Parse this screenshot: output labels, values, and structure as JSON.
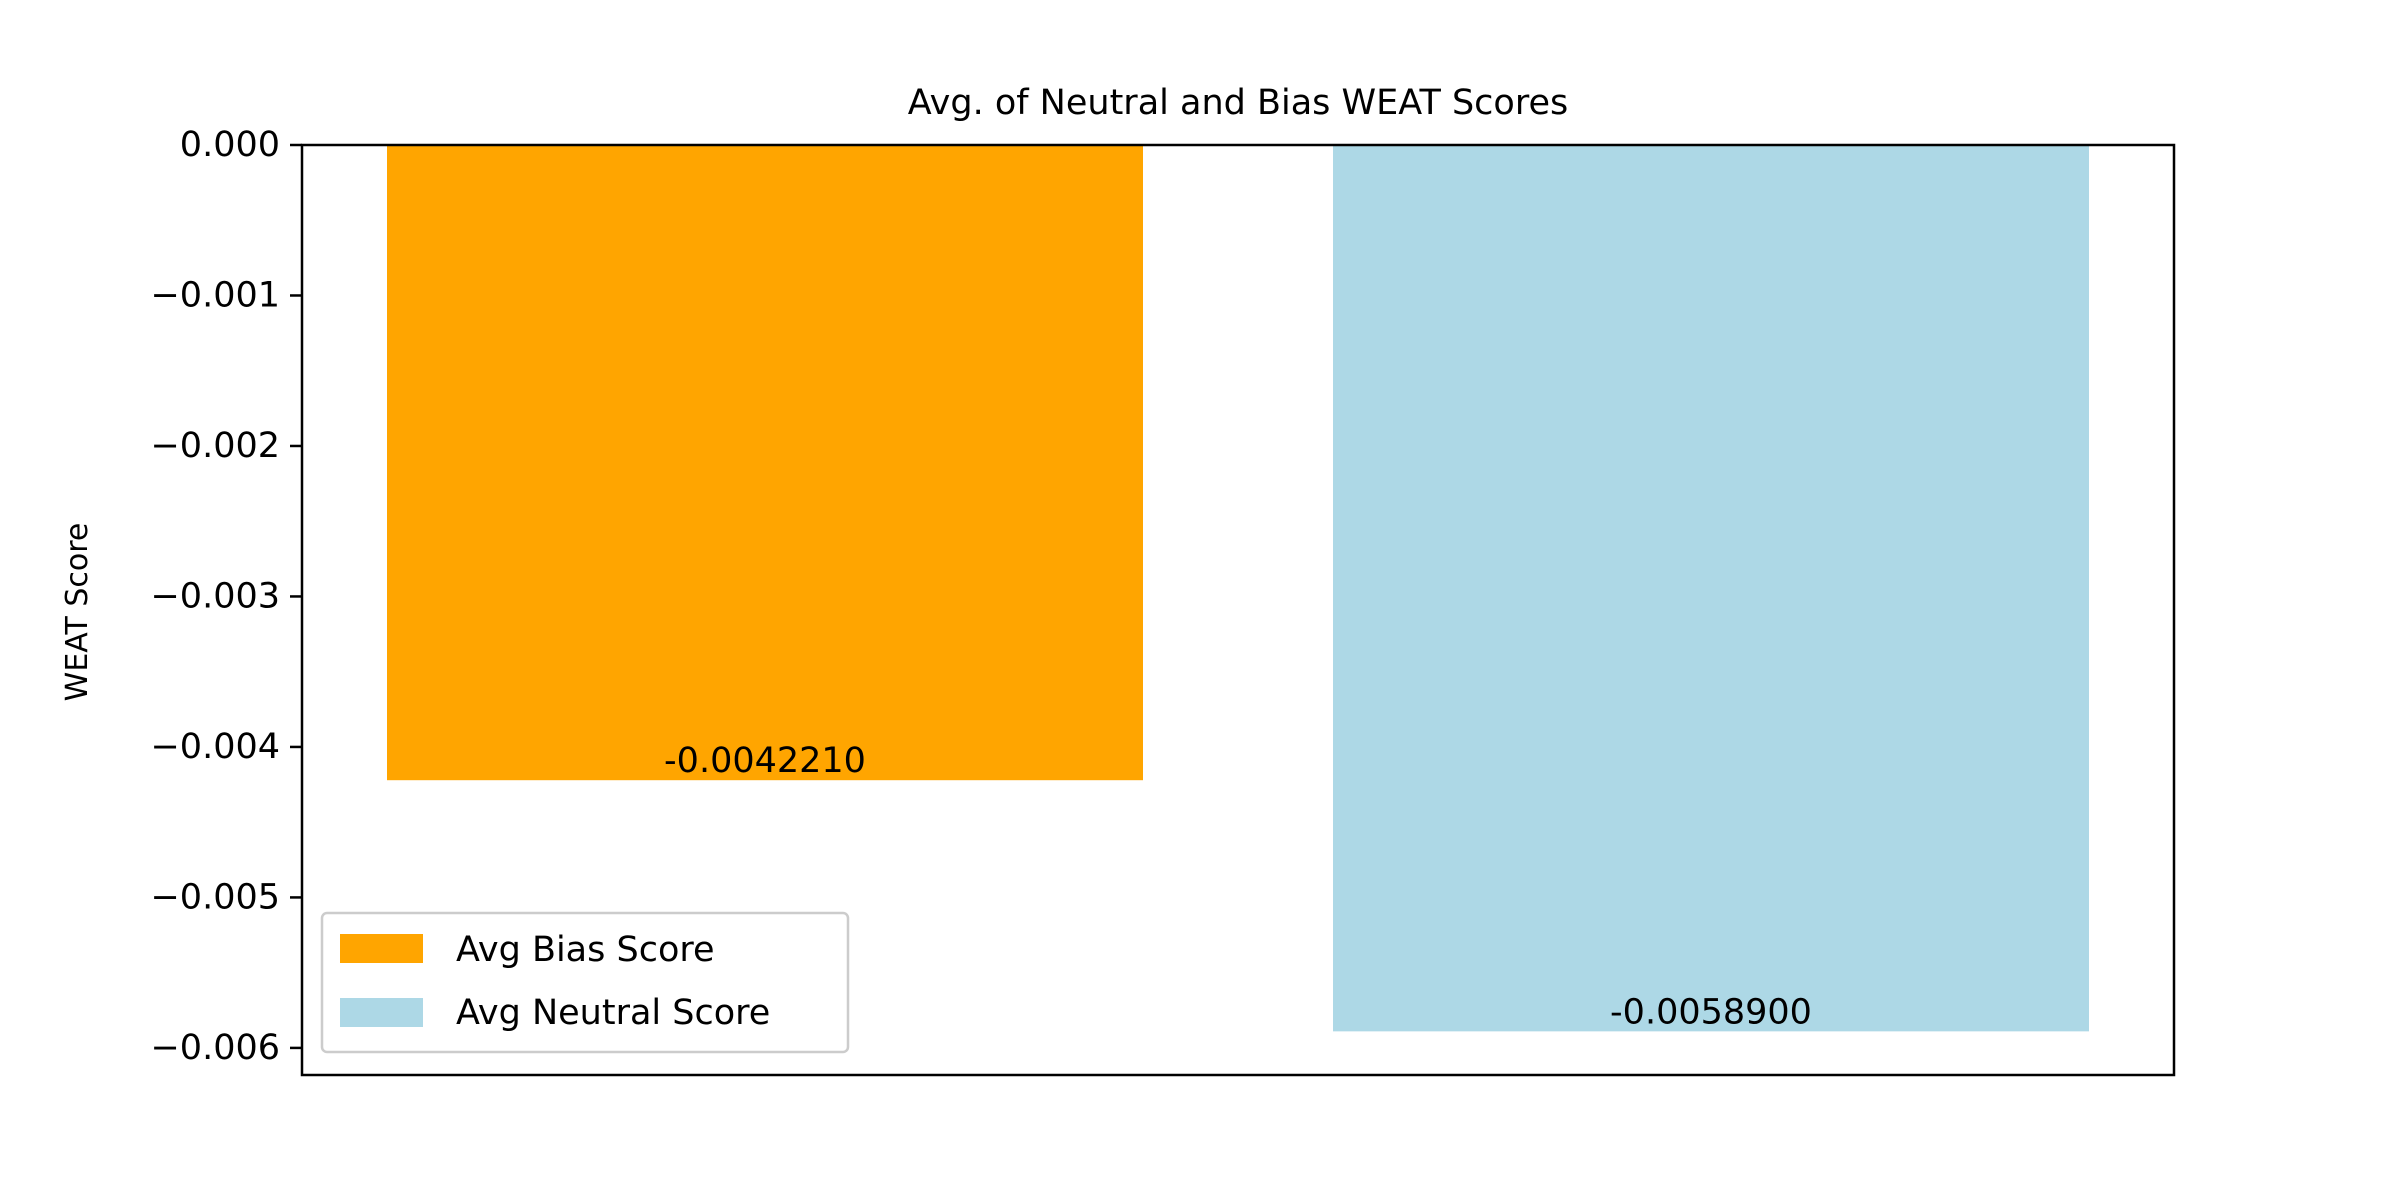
{
  "chart_data": {
    "type": "bar",
    "title": "Avg. of Neutral and Bias WEAT Scores",
    "xlabel": "",
    "ylabel": "WEAT Score",
    "ylim": [
      -0.00618,
      0.0
    ],
    "yticks": [
      0.0,
      -0.001,
      -0.002,
      -0.003,
      -0.004,
      -0.005,
      -0.006
    ],
    "ytick_labels": [
      "0.000",
      "−0.001",
      "−0.002",
      "−0.003",
      "−0.004",
      "−0.005",
      "−0.006"
    ],
    "grid": false,
    "legend_position": "lower-left",
    "series": [
      {
        "name": "Avg Bias Score",
        "value": -0.004221,
        "label": "-0.0042210",
        "color": "#FFA500"
      },
      {
        "name": "Avg Neutral Score",
        "value": -0.00589,
        "label": "-0.0058900",
        "color": "#ADD8E6"
      }
    ]
  }
}
